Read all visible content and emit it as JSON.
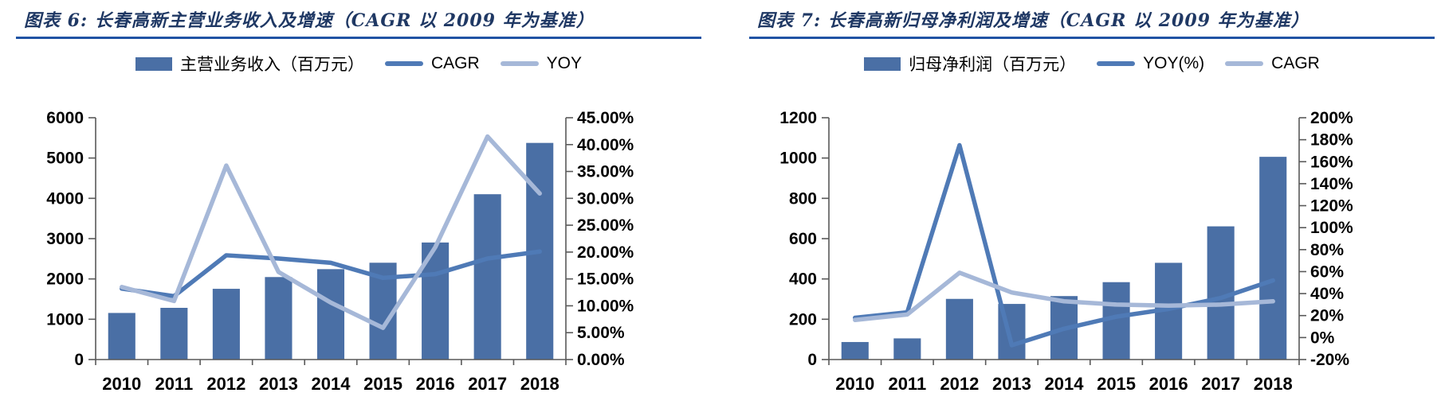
{
  "theme": {
    "title_color": "#1F3864",
    "rule_color": "#2053A4",
    "axis_color": "#595959",
    "bar_color": "#4A6FA5",
    "dark_line_color": "#4F7AB6",
    "light_line_color": "#A6B8D8",
    "background": "#ffffff"
  },
  "chart_data": [
    {
      "type": "bar",
      "title": "图表 6:  长春高新主营业务收入及增速（CAGR 以 2009 年为基准）",
      "categories": [
        "2010",
        "2011",
        "2012",
        "2013",
        "2014",
        "2015",
        "2016",
        "2017",
        "2018"
      ],
      "bar_series": {
        "name": "主营业务收入（百万元）",
        "axis": "left",
        "color_key": "bar_color",
        "values": [
          1156,
          1283,
          1755,
          2047,
          2243,
          2402,
          2904,
          4102,
          5375
        ]
      },
      "line_series": [
        {
          "name": "CAGR",
          "axis": "right",
          "color_key": "dark_line_color",
          "values": [
            13.2,
            11.8,
            19.4,
            18.8,
            18.0,
            15.2,
            15.9,
            18.8,
            20.1
          ]
        },
        {
          "name": "YOY",
          "axis": "right",
          "color_key": "light_line_color",
          "values": [
            13.5,
            10.9,
            36.1,
            16.3,
            10.6,
            5.9,
            20.9,
            41.5,
            30.9
          ]
        }
      ],
      "left_axis": {
        "min": 0,
        "max": 6000,
        "step": 1000,
        "format": "int"
      },
      "right_axis": {
        "min": 0,
        "max": 45,
        "step": 5,
        "format": "pct2"
      },
      "legend_position": "top",
      "grid": "off"
    },
    {
      "type": "bar",
      "title": "图表 7:  长春高新归母净利润及增速（CAGR 以 2009 年为基准）",
      "categories": [
        "2010",
        "2011",
        "2012",
        "2013",
        "2014",
        "2015",
        "2016",
        "2017",
        "2018"
      ],
      "bar_series": {
        "name": "归母净利润（百万元）",
        "axis": "left",
        "color_key": "bar_color",
        "values": [
          87,
          105,
          301,
          276,
          315,
          384,
          480,
          661,
          1006
        ]
      },
      "line_series": [
        {
          "name": "YOY(%)",
          "axis": "right",
          "color_key": "dark_line_color",
          "values": [
            18,
            23,
            175,
            -7,
            8,
            19,
            26,
            36,
            52
          ]
        },
        {
          "name": "CAGR",
          "axis": "right",
          "color_key": "light_line_color",
          "values": [
            16,
            21,
            59,
            41,
            33,
            30,
            29,
            30,
            33
          ]
        }
      ],
      "left_axis": {
        "min": 0,
        "max": 1200,
        "step": 200,
        "format": "int"
      },
      "right_axis": {
        "min": -20,
        "max": 200,
        "step": 20,
        "format": "pct0"
      },
      "legend_position": "top",
      "grid": "off"
    }
  ]
}
